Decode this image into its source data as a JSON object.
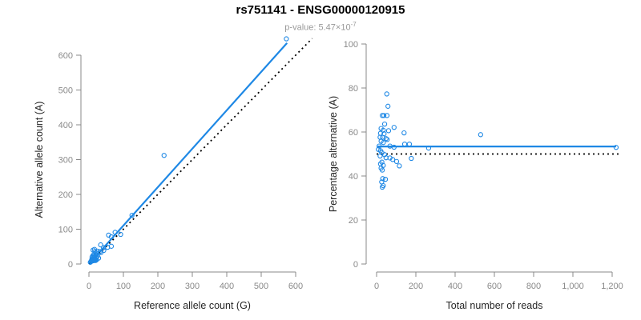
{
  "header": {
    "title": "rs751141 - ENSG00000120915",
    "subtitle_prefix": "p-value: 5.47×10",
    "subtitle_exponent": "-7"
  },
  "colors": {
    "accent": "#1e88e5",
    "axis_line": "#888888",
    "tick_label": "#8a8a8a",
    "axis_title": "#262626",
    "subtitle": "#999999",
    "dotted_line": "#000000"
  },
  "chart_data": [
    {
      "type": "scatter",
      "name": "allele-counts-scatter",
      "xlabel": "Reference allele count (G)",
      "ylabel": "Alternative allele count (A)",
      "xlim": [
        0,
        650
      ],
      "ylim": [
        0,
        650
      ],
      "grid": false,
      "xticks": [
        0,
        100,
        200,
        300,
        400,
        500,
        600
      ],
      "xtick_labels": [
        "0",
        "100",
        "200",
        "300",
        "400",
        "500",
        "600"
      ],
      "yticks": [
        0,
        100,
        200,
        300,
        400,
        500,
        600
      ],
      "ytick_labels": [
        "0",
        "100",
        "200",
        "300",
        "400",
        "500",
        "600"
      ],
      "points": [
        [
          12,
          40
        ],
        [
          16,
          42
        ],
        [
          9,
          20
        ],
        [
          12,
          25
        ],
        [
          17,
          36
        ],
        [
          15,
          26
        ],
        [
          9,
          14
        ],
        [
          13,
          21
        ],
        [
          24,
          37
        ],
        [
          34,
          55
        ],
        [
          8,
          12
        ],
        [
          16,
          22
        ],
        [
          57,
          83
        ],
        [
          8,
          10
        ],
        [
          13,
          17
        ],
        [
          21,
          27
        ],
        [
          23,
          31
        ],
        [
          10,
          13
        ],
        [
          15,
          19
        ],
        [
          32,
          36
        ],
        [
          42,
          47
        ],
        [
          65,
          78
        ],
        [
          76,
          91
        ],
        [
          125,
          140
        ],
        [
          6,
          7
        ],
        [
          4,
          5
        ],
        [
          10,
          10
        ],
        [
          13,
          14
        ],
        [
          21,
          20
        ],
        [
          9,
          9
        ],
        [
          25,
          23
        ],
        [
          35,
          33
        ],
        [
          43,
          39
        ],
        [
          54,
          48
        ],
        [
          92,
          85
        ],
        [
          15,
          12
        ],
        [
          11,
          9
        ],
        [
          19,
          15
        ],
        [
          65,
          51
        ],
        [
          13,
          10
        ],
        [
          17,
          12
        ],
        [
          19,
          12
        ],
        [
          28,
          17
        ],
        [
          16,
          10
        ],
        [
          22,
          12
        ],
        [
          19,
          10
        ],
        [
          218,
          312
        ],
        [
          573,
          647
        ]
      ],
      "lines": [
        {
          "name": "regression-line",
          "style": "solid",
          "color": "#1e88e5",
          "x1": 0,
          "y1": 0,
          "x2": 575,
          "y2": 635
        },
        {
          "name": "identity-line",
          "style": "dotted",
          "color": "#000000",
          "x1": 0,
          "y1": 0,
          "x2": 648,
          "y2": 648
        }
      ]
    },
    {
      "type": "scatter",
      "name": "percentage-vs-reads-scatter",
      "xlabel": "Total number of reads",
      "ylabel": "Percentage alternative (A)",
      "xlim": [
        0,
        1250
      ],
      "ylim": [
        0,
        100
      ],
      "grid": false,
      "xticks": [
        0,
        200,
        400,
        600,
        800,
        1000,
        1200
      ],
      "xtick_labels": [
        "0",
        "200",
        "400",
        "600",
        "800",
        "1,000",
        "1,200"
      ],
      "yticks": [
        0,
        20,
        40,
        60,
        80,
        100
      ],
      "ytick_labels": [
        "0",
        "20",
        "40",
        "60",
        "80",
        "100"
      ],
      "points": [
        [
          52,
          77.3
        ],
        [
          58,
          71.7
        ],
        [
          29,
          67.5
        ],
        [
          37,
          67.5
        ],
        [
          53,
          67.5
        ],
        [
          41,
          63.6
        ],
        [
          23,
          61.6
        ],
        [
          34,
          60.8
        ],
        [
          61,
          60.6
        ],
        [
          89,
          62.1
        ],
        [
          20,
          59.4
        ],
        [
          38,
          59.2
        ],
        [
          140,
          59.6
        ],
        [
          18,
          57.6
        ],
        [
          30,
          57.6
        ],
        [
          48,
          57.0
        ],
        [
          54,
          56.6
        ],
        [
          23,
          55.8
        ],
        [
          34,
          55.2
        ],
        [
          68,
          53.6
        ],
        [
          89,
          53.1
        ],
        [
          143,
          54.5
        ],
        [
          167,
          54.5
        ],
        [
          265,
          52.7
        ],
        [
          13,
          53.6
        ],
        [
          9,
          52.1
        ],
        [
          20,
          51.5
        ],
        [
          27,
          50.6
        ],
        [
          41,
          49.7
        ],
        [
          18,
          49.1
        ],
        [
          48,
          48.3
        ],
        [
          68,
          48.2
        ],
        [
          82,
          47.5
        ],
        [
          102,
          46.6
        ],
        [
          177,
          48.0
        ],
        [
          27,
          46.3
        ],
        [
          20,
          45.5
        ],
        [
          34,
          44.8
        ],
        [
          116,
          44.6
        ],
        [
          23,
          43.6
        ],
        [
          29,
          42.7
        ],
        [
          31,
          38.8
        ],
        [
          45,
          38.5
        ],
        [
          26,
          37.3
        ],
        [
          34,
          35.6
        ],
        [
          29,
          34.9
        ],
        [
          530,
          58.8
        ],
        [
          1220,
          53.0
        ]
      ],
      "lines": [
        {
          "name": "regression-line",
          "style": "solid",
          "color": "#1e88e5",
          "x1": 5,
          "y1": 53.4,
          "x2": 1220,
          "y2": 53.4
        },
        {
          "name": "reference-line",
          "style": "dotted",
          "color": "#000000",
          "x1": 0,
          "y1": 50,
          "x2": 1248,
          "y2": 50
        }
      ]
    }
  ]
}
